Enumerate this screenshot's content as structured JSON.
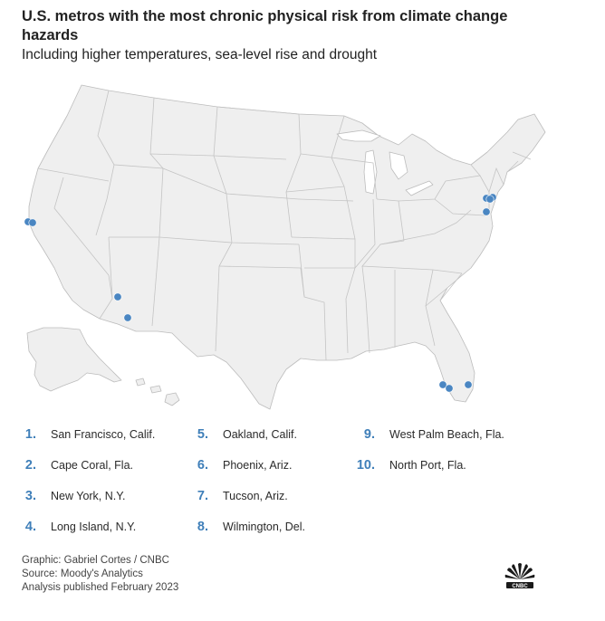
{
  "title": "U.S. metros with the most chronic physical risk from climate change hazards",
  "subtitle": "Including higher temperatures, sea-level rise and drought",
  "colors": {
    "marker": "#4a86c2",
    "land": "#efefef",
    "border": "#bcbcbc",
    "number": "#3f7fb9"
  },
  "legend": [
    {
      "num": "1.",
      "label": "San Francisco, Calif."
    },
    {
      "num": "2.",
      "label": "Cape Coral, Fla."
    },
    {
      "num": "3.",
      "label": "New York, N.Y."
    },
    {
      "num": "4.",
      "label": "Long Island, N.Y."
    },
    {
      "num": "5.",
      "label": "Oakland, Calif."
    },
    {
      "num": "6.",
      "label": "Phoenix, Ariz."
    },
    {
      "num": "7.",
      "label": "Tucson, Ariz."
    },
    {
      "num": "8.",
      "label": "Wilmington, Del."
    },
    {
      "num": "9.",
      "label": "West Palm Beach, Fla."
    },
    {
      "num": "10.",
      "label": "North Port, Fla."
    }
  ],
  "footer": {
    "graphic": "Graphic: Gabriel Cortes / CNBC",
    "source": "Source: Moody's Analytics",
    "published": "Analysis published February 2023"
  },
  "logo": "nbc-peacock-icon"
}
